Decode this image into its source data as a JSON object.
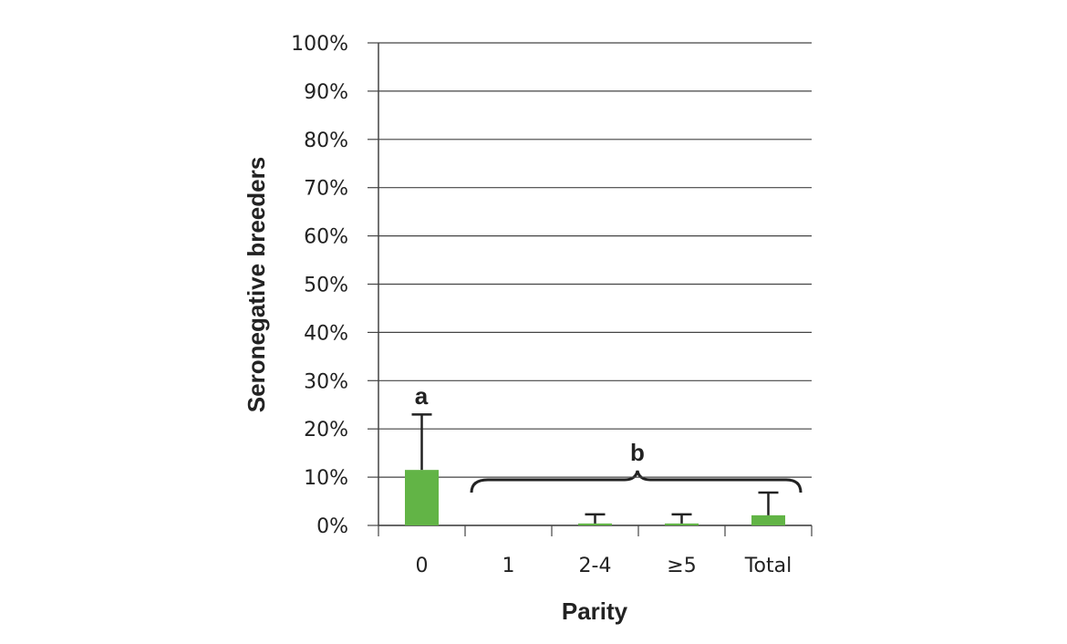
{
  "chart_data": {
    "type": "bar",
    "y_label": "Seronegative breeders",
    "x_label": "Parity",
    "categories": [
      "0",
      "1",
      "2-4",
      "≥5",
      "Total"
    ],
    "values": [
      11.5,
      0,
      0.4,
      0.4,
      2.1
    ],
    "errors": [
      11.5,
      null,
      1.9,
      1.9,
      4.7
    ],
    "color": "#62b446",
    "ylim": [
      0,
      100
    ],
    "yticks": [
      {
        "value": 0,
        "label": "0%"
      },
      {
        "value": 10,
        "label": "10%"
      },
      {
        "value": 20,
        "label": "20%"
      },
      {
        "value": 30,
        "label": "30%"
      },
      {
        "value": 40,
        "label": "40%"
      },
      {
        "value": 50,
        "label": "50%"
      },
      {
        "value": 60,
        "label": "60%"
      },
      {
        "value": 70,
        "label": "70%"
      },
      {
        "value": 80,
        "label": "80%"
      },
      {
        "value": 90,
        "label": "90%"
      },
      {
        "value": 100,
        "label": "100%"
      }
    ],
    "grid": true,
    "annotations": [
      "a",
      "b"
    ]
  }
}
